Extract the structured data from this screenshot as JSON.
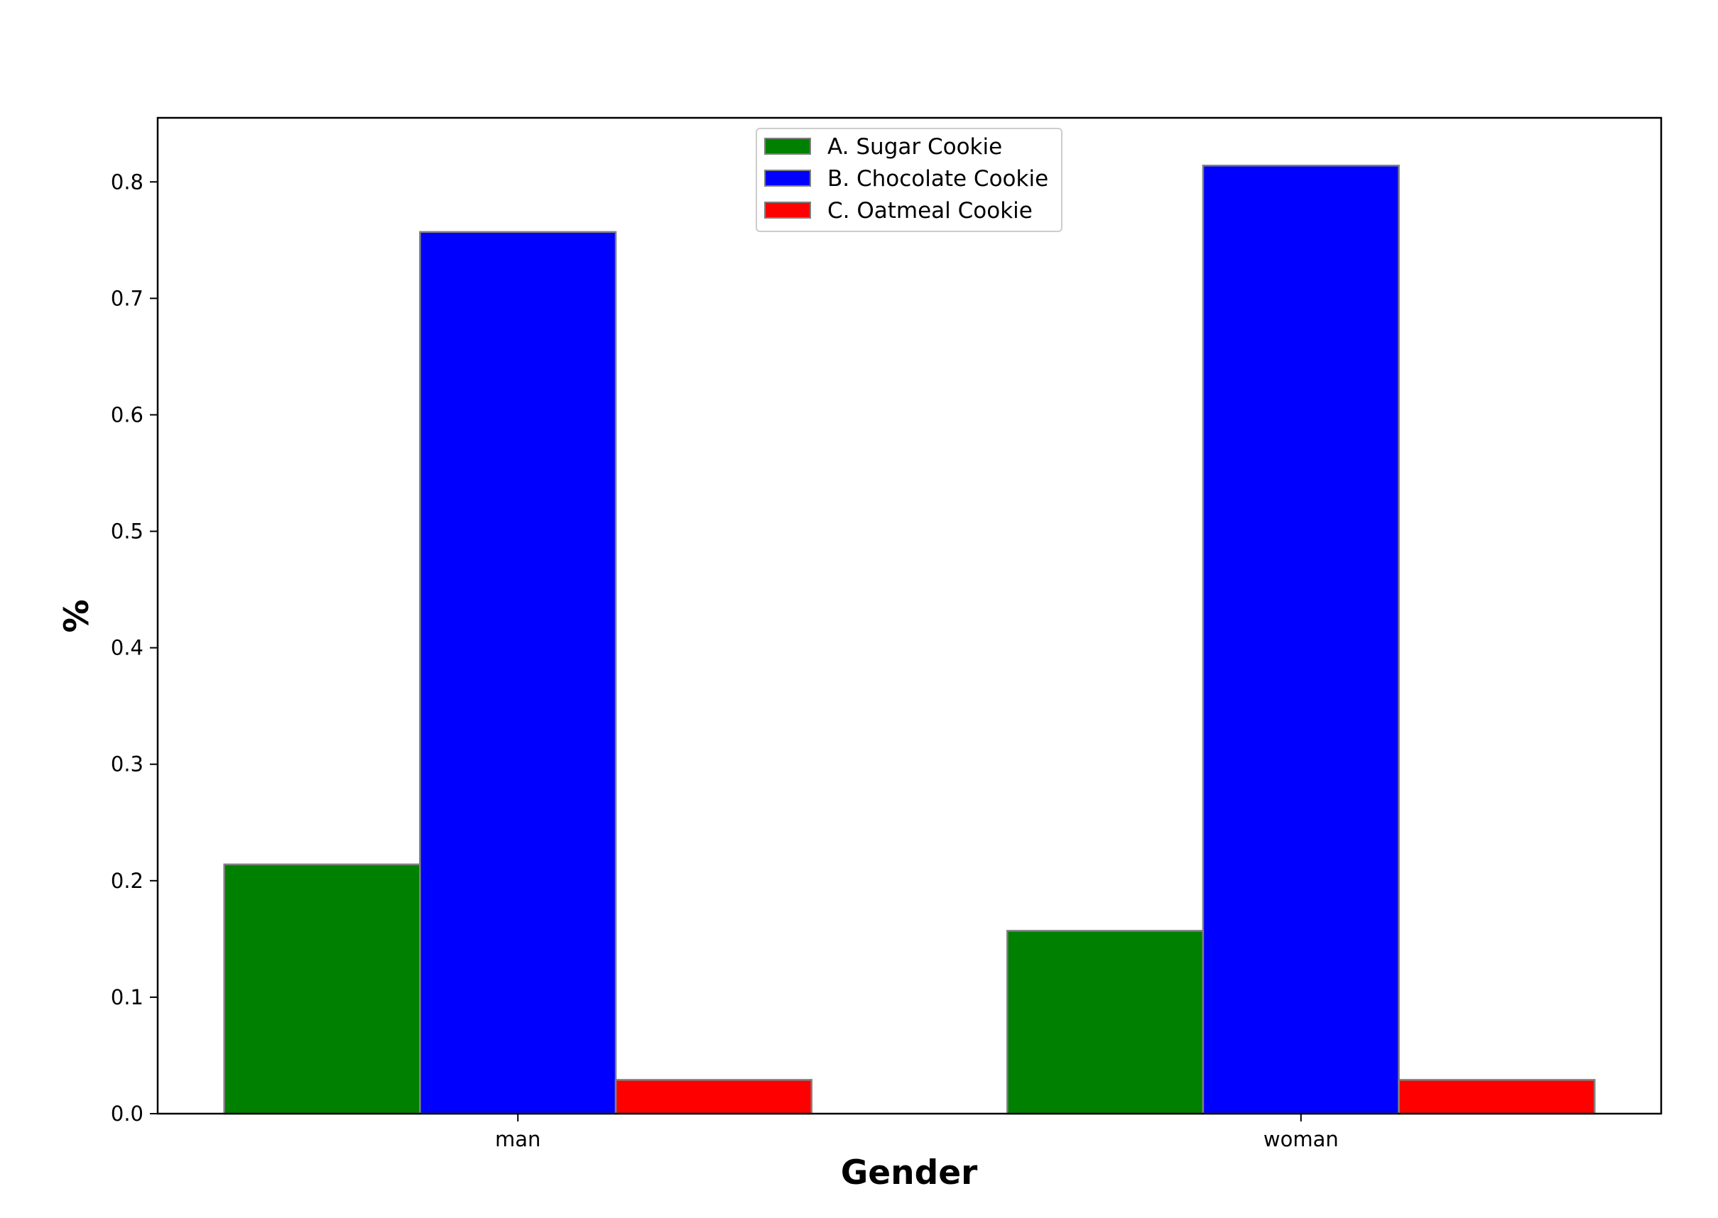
{
  "chart_data": {
    "type": "bar",
    "categories": [
      "man",
      "woman"
    ],
    "series": [
      {
        "name": "A. Sugar Cookie",
        "values": [
          0.214,
          0.157
        ],
        "color": "#008000"
      },
      {
        "name": "B. Chocolate Cookie",
        "values": [
          0.757,
          0.814
        ],
        "color": "#0000ff"
      },
      {
        "name": "C. Oatmeal Cookie",
        "values": [
          0.029,
          0.029
        ],
        "color": "#ff0000"
      }
    ],
    "xlabel": "Gender",
    "ylabel": "%",
    "ylim": [
      0,
      0.855
    ],
    "yticks": [
      "0.0",
      "0.1",
      "0.2",
      "0.3",
      "0.4",
      "0.5",
      "0.6",
      "0.7",
      "0.8"
    ],
    "ytick_values": [
      0,
      0.1,
      0.2,
      0.3,
      0.4,
      0.5,
      0.6,
      0.7,
      0.8
    ],
    "grid": false,
    "legend_position": "top-center",
    "bar_edge_color": "#808080"
  }
}
